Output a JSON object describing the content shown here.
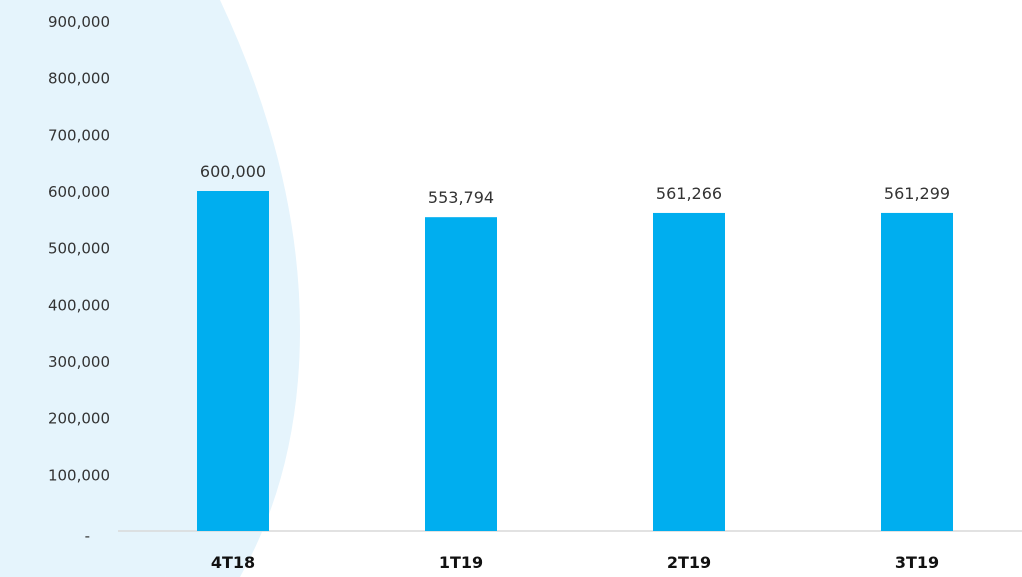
{
  "chart_data": {
    "type": "bar",
    "categories": [
      "4T18",
      "1T19",
      "2T19",
      "3T19"
    ],
    "values": [
      600000,
      553794,
      561266,
      561299
    ],
    "data_labels": [
      "600,000",
      "553,794",
      "561,266",
      "561,299"
    ],
    "y_tick_labels": [
      "-",
      "100,000",
      "200,000",
      "300,000",
      "400,000",
      "500,000",
      "600,000",
      "700,000",
      "800,000",
      "900,000"
    ],
    "y_ticks": [
      0,
      100000,
      200000,
      300000,
      400000,
      500000,
      600000,
      700000,
      800000,
      900000
    ],
    "ylim": [
      0,
      900000
    ],
    "title": "",
    "xlabel": "",
    "ylabel": "",
    "grid": false,
    "legend": "none",
    "bar_color": "#00AEEF",
    "background_arc_color": "#E5F4FC",
    "axis_color": "#D9D9D9"
  }
}
